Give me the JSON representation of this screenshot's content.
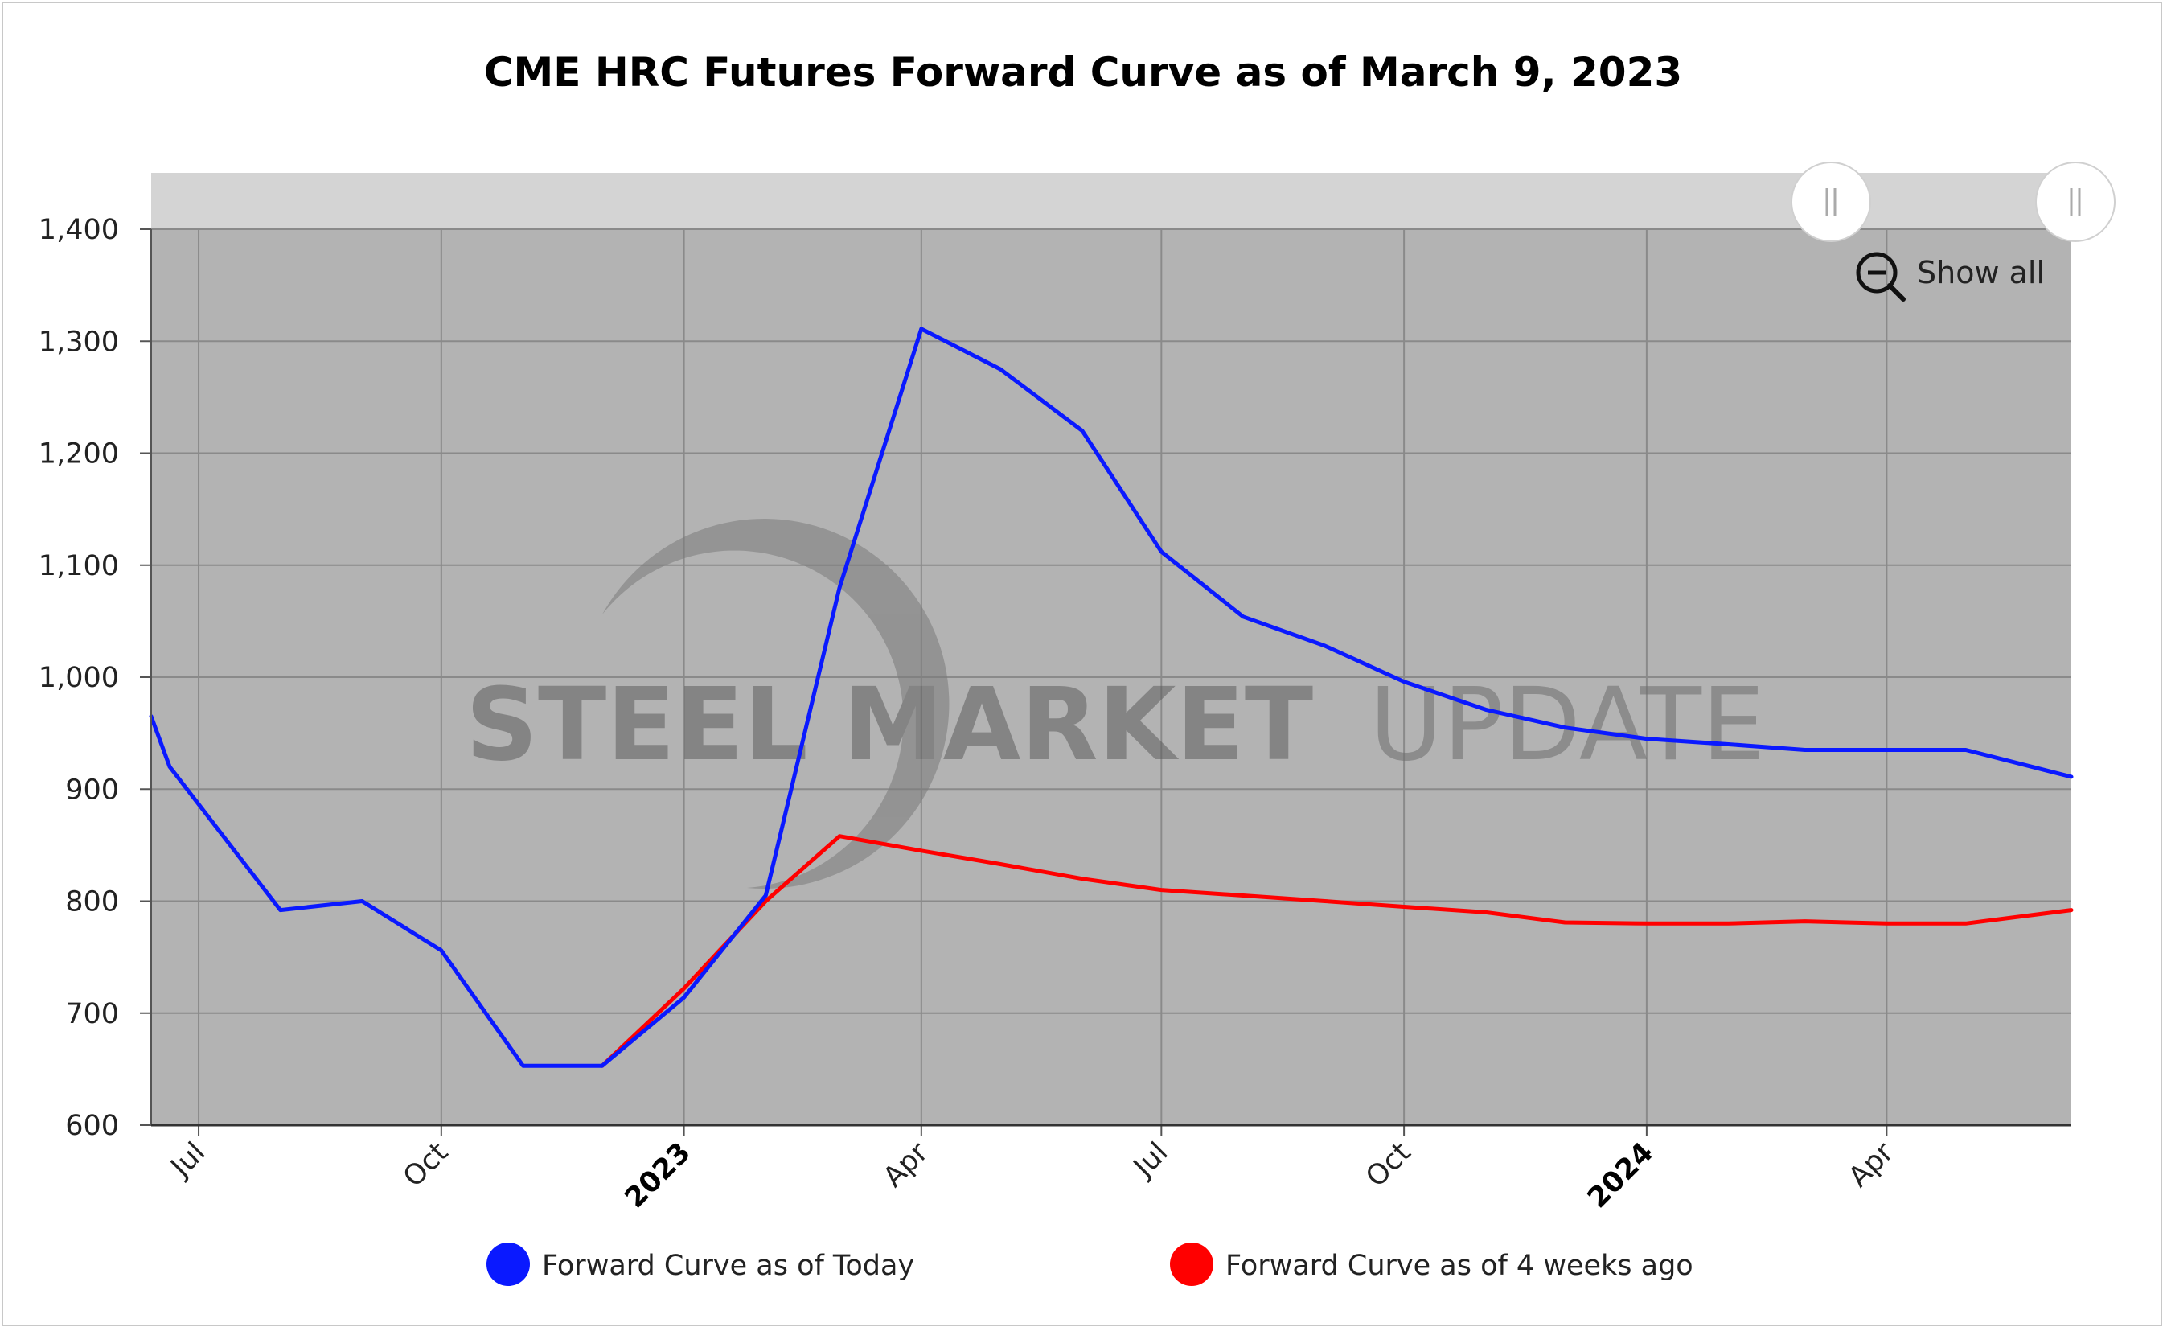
{
  "chart_data": {
    "type": "line",
    "title": "CME HRC Futures Forward Curve as of March 9, 2023",
    "xlabel": "",
    "ylabel": "",
    "ylim": [
      600,
      1400
    ],
    "yticks": [
      600,
      700,
      800,
      900,
      1000,
      1100,
      1200,
      1300,
      1400
    ],
    "ytick_labels": [
      "600",
      "700",
      "800",
      "900",
      "1,000",
      "1,100",
      "1,200",
      "1,300",
      "1,400"
    ],
    "xlim": [
      "2022-06-13",
      "2024-06-10"
    ],
    "xticks": [
      {
        "date": "2022-07-01",
        "label": "Jul",
        "major": false
      },
      {
        "date": "2022-10-01",
        "label": "Oct",
        "major": false
      },
      {
        "date": "2023-01-01",
        "label": "2023",
        "major": true
      },
      {
        "date": "2023-04-01",
        "label": "Apr",
        "major": false
      },
      {
        "date": "2023-07-01",
        "label": "Jul",
        "major": false
      },
      {
        "date": "2023-10-01",
        "label": "Oct",
        "major": false
      },
      {
        "date": "2024-01-01",
        "label": "2024",
        "major": true
      },
      {
        "date": "2024-04-01",
        "label": "Apr",
        "major": false
      }
    ],
    "grid": true,
    "legend_position": "bottom",
    "series": [
      {
        "name": "Forward Curve as of Today",
        "color": "#0a19ff",
        "points": [
          [
            "2022-06-13",
            965
          ],
          [
            "2022-06-20",
            920
          ],
          [
            "2022-08-01",
            792
          ],
          [
            "2022-09-01",
            800
          ],
          [
            "2022-10-01",
            756
          ],
          [
            "2022-11-01",
            653
          ],
          [
            "2022-12-01",
            653
          ],
          [
            "2023-01-01",
            714
          ],
          [
            "2023-02-01",
            805
          ],
          [
            "2023-03-01",
            1080
          ],
          [
            "2023-04-01",
            1311
          ],
          [
            "2023-05-01",
            1275
          ],
          [
            "2023-06-01",
            1220
          ],
          [
            "2023-07-01",
            1112
          ],
          [
            "2023-08-01",
            1054
          ],
          [
            "2023-09-01",
            1028
          ],
          [
            "2023-10-01",
            996
          ],
          [
            "2023-11-01",
            971
          ],
          [
            "2023-12-01",
            955
          ],
          [
            "2024-01-01",
            945
          ],
          [
            "2024-02-01",
            940
          ],
          [
            "2024-03-01",
            935
          ],
          [
            "2024-04-01",
            935
          ],
          [
            "2024-05-01",
            935
          ],
          [
            "2024-06-10",
            911
          ]
        ]
      },
      {
        "name": "Forward Curve as of 4 weeks ago",
        "color": "#ff0000",
        "points": [
          [
            "2022-12-01",
            653
          ],
          [
            "2023-01-01",
            722
          ],
          [
            "2023-02-01",
            800
          ],
          [
            "2023-03-01",
            858
          ],
          [
            "2023-04-01",
            845
          ],
          [
            "2023-05-01",
            833
          ],
          [
            "2023-06-01",
            820
          ],
          [
            "2023-07-01",
            810
          ],
          [
            "2023-08-01",
            805
          ],
          [
            "2023-09-01",
            800
          ],
          [
            "2023-10-01",
            795
          ],
          [
            "2023-11-01",
            790
          ],
          [
            "2023-12-01",
            781
          ],
          [
            "2024-01-01",
            780
          ],
          [
            "2024-02-01",
            780
          ],
          [
            "2024-03-01",
            782
          ],
          [
            "2024-04-01",
            780
          ],
          [
            "2024-05-01",
            780
          ],
          [
            "2024-06-10",
            792
          ]
        ]
      }
    ]
  },
  "controls": {
    "show_all_label": "Show all",
    "zoom_icon": "zoom-out-icon"
  },
  "watermark": {
    "text_bold": "STEEL MARKET",
    "text_light": "UPDATE"
  },
  "colors": {
    "plot_background": "#b3b3b3",
    "navigator_band": "#d4d4d4",
    "grid": "#8a8a8a"
  }
}
